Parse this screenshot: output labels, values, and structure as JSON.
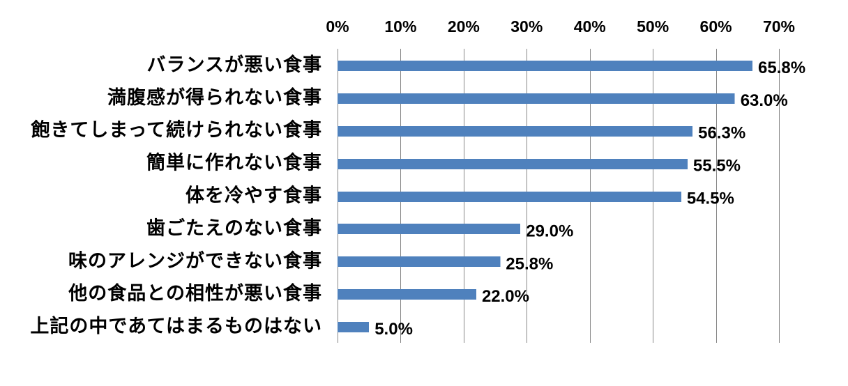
{
  "chart_data": {
    "type": "bar",
    "orientation": "horizontal",
    "categories": [
      "バランスが悪い食事",
      "満腹感が得られない食事",
      "飽きてしまって続けられない食事",
      "簡単に作れない食事",
      "体を冷やす食事",
      "歯ごたえのない食事",
      "味のアレンジができない食事",
      "他の食品との相性が悪い食事",
      "上記の中であてはまるものはない"
    ],
    "values": [
      65.8,
      63.0,
      56.3,
      55.5,
      54.5,
      29.0,
      25.8,
      22.0,
      5.0
    ],
    "data_labels": [
      "65.8%",
      "63.0%",
      "56.3%",
      "55.5%",
      "54.5%",
      "29.0%",
      "25.8%",
      "22.0%",
      "5.0%"
    ],
    "x_ticks": [
      0,
      10,
      20,
      30,
      40,
      50,
      60,
      70
    ],
    "x_tick_labels": [
      "0%",
      "10%",
      "20%",
      "30%",
      "40%",
      "50%",
      "60%",
      "70%"
    ],
    "xlim": [
      0,
      70
    ],
    "x_axis_position": "top",
    "grid": true,
    "legend": false,
    "bar_color": "#4F81BD"
  }
}
